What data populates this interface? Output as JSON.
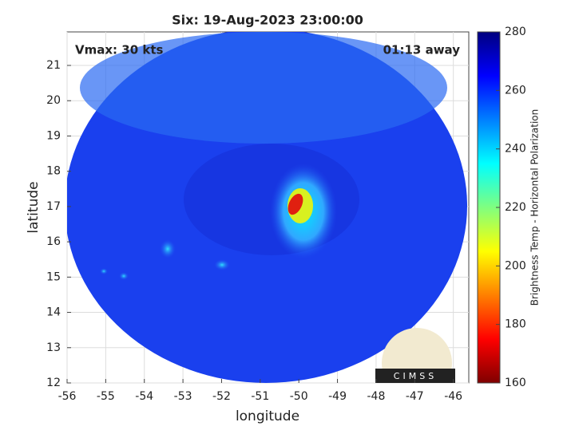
{
  "chart_data": {
    "type": "image",
    "title": "Six: 19-Aug-2023 23:00:00",
    "annotations": [
      "Vmax: 30 kts",
      "01:13 away"
    ],
    "x_label": "longitude",
    "y_label": "latitude",
    "xlim": [
      -56,
      -45.6
    ],
    "xticks": [
      -56,
      -55,
      -54,
      -53,
      -52,
      -51,
      -50,
      -49,
      -48,
      -47,
      -46
    ],
    "ylim": [
      12,
      21.95
    ],
    "yticks": [
      12,
      13,
      14,
      15,
      16,
      17,
      18,
      19,
      20,
      21
    ],
    "grid": true,
    "colorbar": {
      "label": "Brightness Temp - Horizontal Polarization",
      "lim": [
        160,
        280
      ],
      "ticks": [
        160,
        180,
        200,
        220,
        240,
        260,
        280
      ],
      "colormap": [
        "#7f0000",
        "#ff0000",
        "#ffff00",
        "#00ffff",
        "#0000ff",
        "#00007f"
      ]
    },
    "logo": "CIMSS"
  }
}
